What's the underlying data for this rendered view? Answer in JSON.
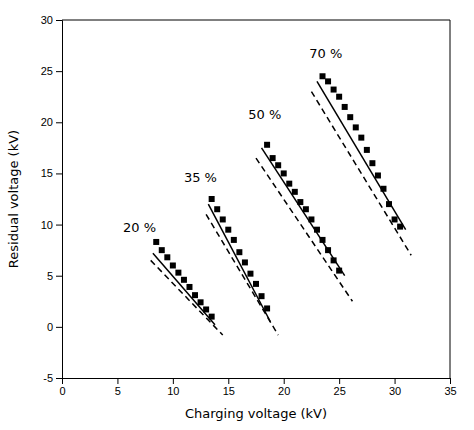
{
  "chart_data": {
    "type": "line",
    "xlabel": "Charging voltage (kV)",
    "ylabel": "Residual voltage (kV)",
    "xlim": [
      0,
      35
    ],
    "ylim": [
      -5,
      30
    ],
    "xticks": [
      0,
      5,
      10,
      15,
      20,
      25,
      30,
      35
    ],
    "yticks": [
      -5,
      0,
      5,
      10,
      15,
      20,
      25,
      30
    ],
    "grid": false,
    "series": [
      {
        "type": "line",
        "line_style": "dashed",
        "color": "black",
        "x": [
          8.0,
          14.5
        ],
        "values": [
          6.5,
          -0.8
        ]
      },
      {
        "type": "line",
        "line_style": "solid",
        "color": "black",
        "x": [
          8.2,
          13.8
        ],
        "values": [
          7.2,
          0.2
        ]
      },
      {
        "type": "scatter",
        "marker": "square",
        "color": "black",
        "x": [
          8.5,
          9.0,
          9.5,
          10.0,
          10.5,
          11.0,
          11.5,
          12.0,
          12.5,
          13.0,
          13.5
        ],
        "values": [
          8.3,
          7.5,
          6.8,
          6.0,
          5.3,
          4.6,
          3.9,
          3.1,
          2.4,
          1.7,
          1.0
        ]
      },
      {
        "type": "line",
        "line_style": "dashed",
        "color": "black",
        "x": [
          13.0,
          19.5
        ],
        "values": [
          11.0,
          -0.8
        ]
      },
      {
        "type": "line",
        "line_style": "solid",
        "color": "black",
        "x": [
          13.2,
          18.8
        ],
        "values": [
          12.0,
          0.5
        ]
      },
      {
        "type": "scatter",
        "marker": "square",
        "color": "black",
        "x": [
          13.5,
          14.0,
          14.5,
          15.0,
          15.5,
          16.0,
          16.5,
          17.0,
          17.5,
          18.0,
          18.5
        ],
        "values": [
          12.5,
          11.5,
          10.5,
          9.5,
          8.5,
          7.3,
          6.3,
          5.2,
          4.2,
          3.0,
          1.8
        ]
      },
      {
        "type": "line",
        "line_style": "dashed",
        "color": "black",
        "x": [
          17.5,
          26.2
        ],
        "values": [
          16.5,
          2.5
        ]
      },
      {
        "type": "line",
        "line_style": "solid",
        "color": "black",
        "x": [
          18.0,
          25.5
        ],
        "values": [
          17.5,
          5.0
        ]
      },
      {
        "type": "scatter",
        "marker": "square",
        "color": "black",
        "x": [
          18.5,
          19.0,
          19.5,
          20.0,
          20.5,
          21.0,
          21.5,
          22.0,
          22.5,
          23.0,
          23.5,
          24.0,
          24.5,
          25.0
        ],
        "values": [
          17.8,
          16.5,
          15.8,
          15.0,
          14.0,
          13.2,
          12.2,
          11.5,
          10.5,
          9.5,
          8.5,
          7.5,
          6.5,
          5.5
        ]
      },
      {
        "type": "line",
        "line_style": "dashed",
        "color": "black",
        "x": [
          22.5,
          31.5
        ],
        "values": [
          23.0,
          7.0
        ]
      },
      {
        "type": "line",
        "line_style": "solid",
        "color": "black",
        "x": [
          23.0,
          31.0
        ],
        "values": [
          24.0,
          9.5
        ]
      },
      {
        "type": "scatter",
        "marker": "square",
        "color": "black",
        "x": [
          23.5,
          24.0,
          24.5,
          25.0,
          25.5,
          26.0,
          26.5,
          27.0,
          27.5,
          28.0,
          28.5,
          29.0,
          29.5,
          30.0,
          30.5
        ],
        "values": [
          24.5,
          24.0,
          23.2,
          22.5,
          21.5,
          20.5,
          19.5,
          18.5,
          17.3,
          16.0,
          14.8,
          13.5,
          12.0,
          10.5,
          9.8
        ]
      }
    ],
    "annotations": [
      {
        "text": "20 %",
        "x": 5.5,
        "y": 9.3
      },
      {
        "text": "35 %",
        "x": 11.0,
        "y": 14.2
      },
      {
        "text": "50 %",
        "x": 16.8,
        "y": 20.3
      },
      {
        "text": "70 %",
        "x": 22.3,
        "y": 26.3
      }
    ]
  }
}
